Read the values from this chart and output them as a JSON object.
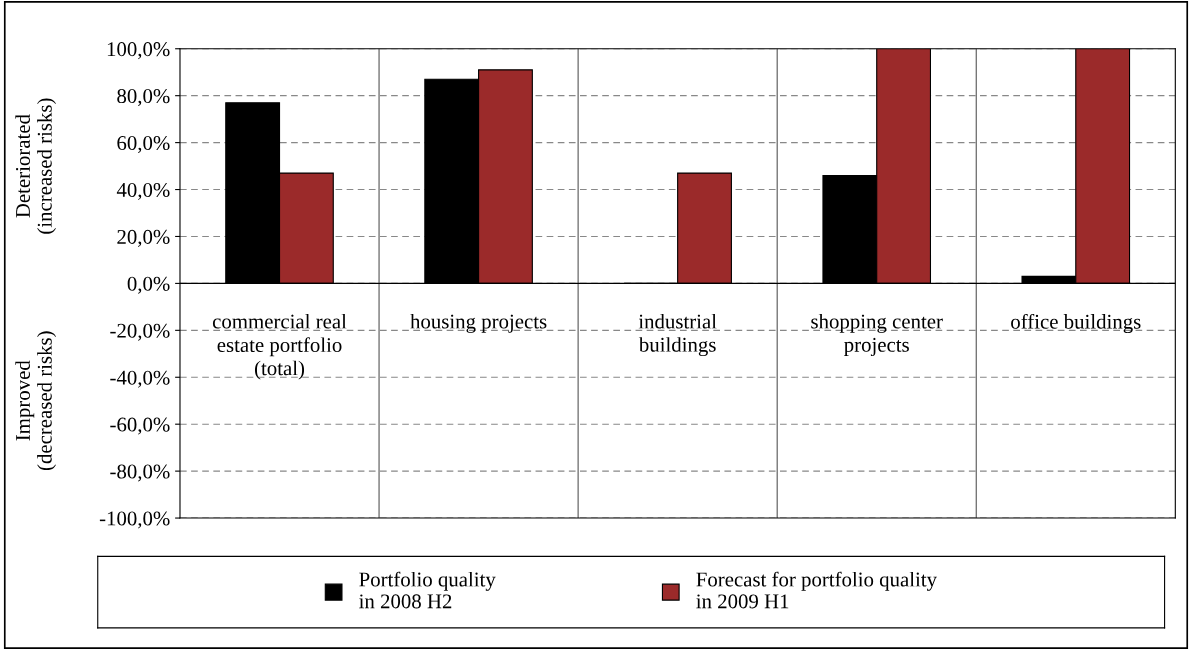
{
  "chart_data": {
    "type": "bar",
    "categories": [
      "commercial real\nestate portfolio\n(total)",
      "housing projects",
      "industrial\nbuildings",
      "shopping center\nprojects",
      "office buildings"
    ],
    "series": [
      {
        "name": "Portfolio quality\nin 2008 H2",
        "color": "#000000",
        "values": [
          77,
          87,
          0,
          46,
          3
        ]
      },
      {
        "name": "Forecast for portfolio quality\nin 2009 H1",
        "color": "#9b2a2a",
        "values": [
          47,
          91,
          47,
          100,
          100
        ]
      }
    ],
    "ylim": [
      -100,
      100
    ],
    "yticks": [
      {
        "value": -100,
        "label": "-100,0%"
      },
      {
        "value": -80,
        "label": "-80,0%"
      },
      {
        "value": -60,
        "label": "-60,0%"
      },
      {
        "value": -40,
        "label": "-40,0%"
      },
      {
        "value": -20,
        "label": "-20,0%"
      },
      {
        "value": 0,
        "label": "0,0%"
      },
      {
        "value": 20,
        "label": "20,0%"
      },
      {
        "value": 40,
        "label": "40,0%"
      },
      {
        "value": 60,
        "label": "60,0%"
      },
      {
        "value": 80,
        "label": "80,0%"
      },
      {
        "value": 100,
        "label": "100,0%"
      }
    ],
    "annotations": [
      "Deteriorated\n(increased risks)",
      "Improved\n(decreased risks)"
    ],
    "grid": "y",
    "legend": "bottom"
  }
}
